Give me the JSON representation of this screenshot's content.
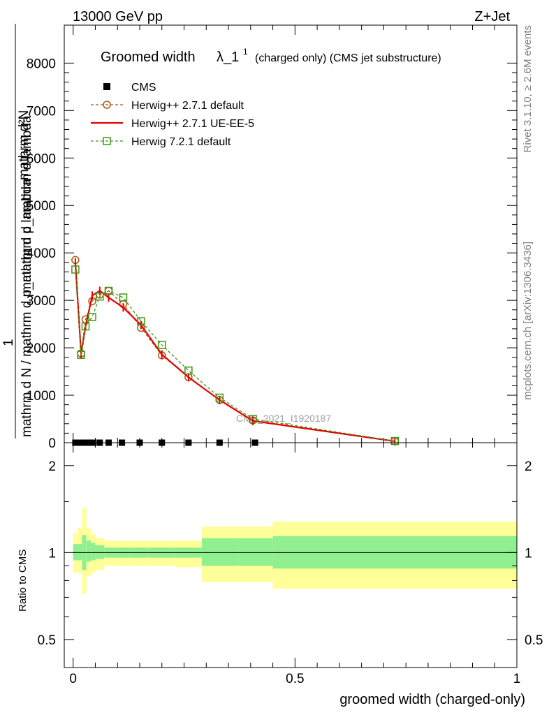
{
  "header": {
    "left": "13000 GeV pp",
    "right": "Z+Jet"
  },
  "side_labels": {
    "rivet": "Rivet 3.1.10, ≥ 2.6M events",
    "mcplots": "mcplots.cern.ch [arXiv:1306.3436]"
  },
  "chart_data": [
    {
      "type": "line",
      "title": "Groomed width",
      "title_symbol": "λ_1",
      "title_superscript": "1",
      "subtitle": "(charged only) (CMS jet substructure)",
      "ylabel_top": "mathrm d²N",
      "ylabel_mid": "mathrm d p_mathrm d lambda",
      "ylabel_bottom": "mathrm d N / mathrm d p_mathrm d lambda",
      "ylabel_one": "1",
      "ylim": [
        0,
        8800
      ],
      "xlim": [
        -0.02,
        1.0
      ],
      "y_ticks": [
        0,
        1000,
        2000,
        3000,
        4000,
        5000,
        6000,
        7000,
        8000
      ],
      "y_tick_labels": [
        "0",
        "1000",
        "2000",
        "3000",
        "4000",
        "5000",
        "6000",
        "7000",
        "8000"
      ],
      "legend_placement": "top-left",
      "watermark": "CMS_2021_I1920187",
      "series": [
        {
          "name": "CMS",
          "color": "#000000",
          "marker": "square",
          "x": [
            0.005,
            0.015,
            0.025,
            0.035,
            0.045,
            0.06,
            0.08,
            0.11,
            0.15,
            0.2,
            0.26,
            0.33,
            0.41
          ],
          "y": [
            0,
            0,
            0,
            0,
            0,
            0,
            0,
            0,
            0,
            0,
            0,
            0,
            0
          ]
        },
        {
          "name": "Herwig++ 2.7.1 default",
          "color": "#a85a14",
          "dash": "4,3",
          "marker": "circle",
          "x": [
            0.005,
            0.018,
            0.028,
            0.043,
            0.06,
            0.08,
            0.113,
            0.153,
            0.2,
            0.26,
            0.33,
            0.405,
            0.725
          ],
          "y": [
            3850,
            1880,
            2600,
            2980,
            3120,
            3200,
            2920,
            2420,
            1840,
            1380,
            900,
            470,
            30
          ]
        },
        {
          "name": "Herwig++ 2.7.1 UE-EE-5",
          "color": "#e60000",
          "width": 2.2,
          "marker": "none",
          "x": [
            0.005,
            0.018,
            0.028,
            0.043,
            0.06,
            0.08,
            0.113,
            0.153,
            0.2,
            0.26,
            0.33,
            0.405,
            0.725
          ],
          "y": [
            3800,
            1870,
            2450,
            3100,
            3200,
            3060,
            2850,
            2480,
            1860,
            1380,
            900,
            460,
            30
          ]
        },
        {
          "name": "Herwig 7.2.1 default",
          "color": "#3c9a14",
          "dash": "4,3",
          "marker": "square-open",
          "x": [
            0.005,
            0.018,
            0.028,
            0.043,
            0.06,
            0.08,
            0.113,
            0.153,
            0.2,
            0.26,
            0.33,
            0.405,
            0.725
          ],
          "y": [
            3650,
            1850,
            2450,
            2650,
            3080,
            3200,
            3060,
            2560,
            2060,
            1520,
            950,
            500,
            35
          ]
        }
      ]
    },
    {
      "type": "area",
      "ylabel": "Ratio to CMS",
      "xlabel": "groomed width (charged-only)",
      "ylim": [
        0.4,
        2.4
      ],
      "log_y": true,
      "y_ticks": [
        0.5,
        1,
        2
      ],
      "y_tick_labels": [
        "0.5",
        "1",
        "2"
      ],
      "x_ticks": [
        0,
        0.5,
        1
      ],
      "x_tick_labels": [
        "0",
        "0.5",
        "1"
      ],
      "reference_line": 1.0,
      "bands": {
        "edges": [
          0.0,
          0.01,
          0.02,
          0.03,
          0.04,
          0.05,
          0.07,
          0.09,
          0.13,
          0.17,
          0.23,
          0.29,
          0.37,
          0.45,
          1.0
        ],
        "outer_color": "#ffff99",
        "inner_color": "#90f090",
        "outer": [
          [
            0.85,
            1.17
          ],
          [
            0.85,
            1.22
          ],
          [
            0.72,
            1.42
          ],
          [
            0.83,
            1.22
          ],
          [
            0.85,
            1.16
          ],
          [
            0.87,
            1.12
          ],
          [
            0.9,
            1.1
          ],
          [
            0.9,
            1.1
          ],
          [
            0.9,
            1.1
          ],
          [
            0.9,
            1.1
          ],
          [
            0.89,
            1.1
          ],
          [
            0.79,
            1.23
          ],
          [
            0.79,
            1.23
          ],
          [
            0.75,
            1.28
          ]
        ],
        "inner": [
          [
            0.94,
            1.07
          ],
          [
            0.94,
            1.07
          ],
          [
            0.87,
            1.15
          ],
          [
            0.93,
            1.1
          ],
          [
            0.94,
            1.08
          ],
          [
            0.95,
            1.06
          ],
          [
            0.96,
            1.04
          ],
          [
            0.96,
            1.04
          ],
          [
            0.96,
            1.04
          ],
          [
            0.96,
            1.04
          ],
          [
            0.96,
            1.04
          ],
          [
            0.9,
            1.12
          ],
          [
            0.9,
            1.12
          ],
          [
            0.88,
            1.14
          ]
        ]
      }
    }
  ]
}
